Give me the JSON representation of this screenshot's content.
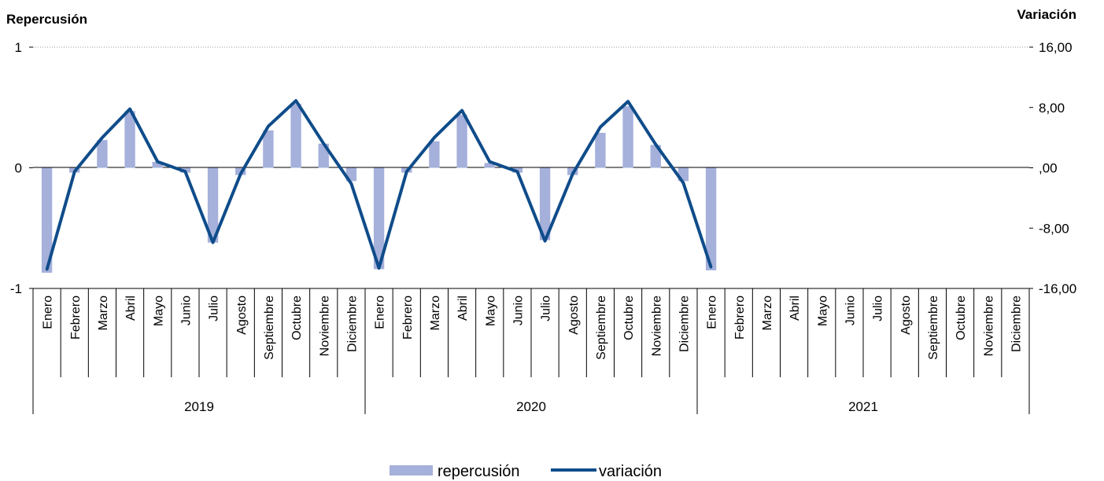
{
  "chart_data": {
    "type": "bar+line",
    "left_axis_title": "Repercusión",
    "right_axis_title": "Variación",
    "left_ticks": [
      "1",
      "0",
      "-1"
    ],
    "right_ticks": [
      "16,00",
      "8,00",
      ",00",
      "-8,00",
      "-16,00"
    ],
    "ylim_left": [
      -1,
      1
    ],
    "ylim_right": [
      -16,
      16
    ],
    "months": [
      "Enero",
      "Febrero",
      "Marzo",
      "Abril",
      "Mayo",
      "Junio",
      "Julio",
      "Agosto",
      "Septiembre",
      "Octubre",
      "Noviembre",
      "Diciembre"
    ],
    "years": [
      "2019",
      "2020",
      "2021"
    ],
    "series": [
      {
        "name": "repercusión",
        "type": "bar",
        "color": "#a5b0db",
        "values": [
          -0.87,
          -0.04,
          0.23,
          0.47,
          0.05,
          -0.04,
          -0.62,
          -0.06,
          0.31,
          0.53,
          0.2,
          -0.11,
          -0.84,
          -0.04,
          0.22,
          0.44,
          0.04,
          -0.04,
          -0.6,
          -0.06,
          0.29,
          0.51,
          0.19,
          -0.11,
          -0.85
        ]
      },
      {
        "name": "variación",
        "type": "line",
        "color": "#0f4c8a",
        "values": [
          -13.5,
          -0.5,
          4,
          7.8,
          0.8,
          -0.5,
          -9.9,
          -0.8,
          5.5,
          8.9,
          3.2,
          -2.1,
          -13.3,
          -0.5,
          4,
          7.6,
          0.8,
          -0.5,
          -9.7,
          -0.8,
          5.4,
          8.8,
          3.1,
          -2,
          -13.2
        ]
      }
    ],
    "grid": {
      "top_dotted": true
    },
    "legend_position": "bottom-center"
  }
}
